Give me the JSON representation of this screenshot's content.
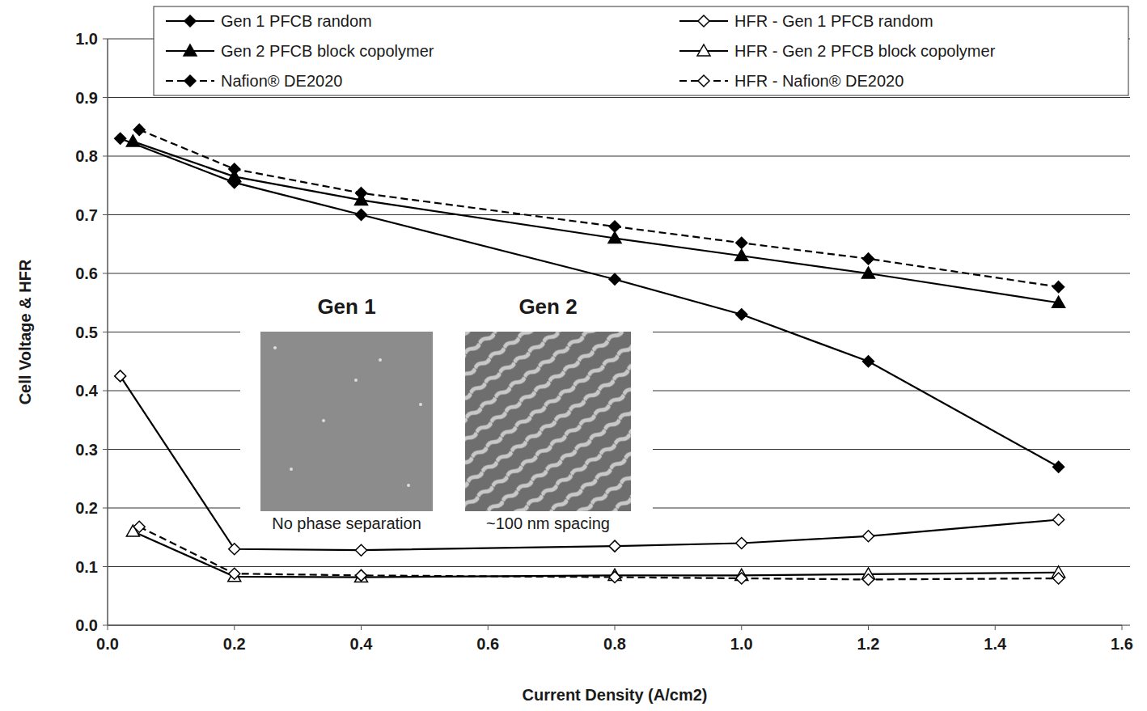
{
  "chart_data": {
    "type": "line",
    "x_label": "Current Density (A/cm2)",
    "y_label": "Cell Voltage & HFR",
    "xlim": [
      0,
      1.6
    ],
    "ylim": [
      0,
      1.0
    ],
    "xticks": [
      {
        "value": 0,
        "label": "0.0"
      },
      0.2,
      0.4,
      0.6,
      0.8,
      {
        "value": 1,
        "label": "1.0"
      },
      1.2,
      1.4,
      1.6
    ],
    "yticks": [
      {
        "value": 0,
        "label": "0.0"
      },
      0.1,
      0.2,
      0.3,
      0.4,
      0.5,
      0.6,
      0.7,
      0.8,
      0.9,
      {
        "value": 1,
        "label": "1.0"
      }
    ],
    "grid": true,
    "legend": "top",
    "series": [
      {
        "name": "Gen 1 PFCB random",
        "color": "#000000",
        "marker": "diamond",
        "line_style": "solid",
        "x": [
          0.02,
          0.2,
          0.4,
          0.8,
          1.0,
          1.2,
          1.5
        ],
        "values": [
          0.83,
          0.755,
          0.7,
          0.59,
          0.53,
          0.45,
          0.27
        ]
      },
      {
        "name": "HFR - Gen 1 PFCB random",
        "color": "#000000",
        "marker": "open-diamond",
        "line_style": "solid",
        "x": [
          0.02,
          0.2,
          0.4,
          0.8,
          1.0,
          1.2,
          1.5
        ],
        "values": [
          0.425,
          0.13,
          0.128,
          0.135,
          0.14,
          0.152,
          0.18
        ]
      },
      {
        "name": "Gen 2 PFCB block copolymer",
        "color": "#000000",
        "marker": "triangle",
        "line_style": "solid",
        "x": [
          0.04,
          0.2,
          0.4,
          0.8,
          1.0,
          1.2,
          1.5
        ],
        "values": [
          0.825,
          0.765,
          0.725,
          0.66,
          0.63,
          0.6,
          0.55
        ]
      },
      {
        "name": "HFR - Gen 2 PFCB block copolymer",
        "color": "#000000",
        "marker": "open-triangle",
        "line_style": "solid",
        "x": [
          0.04,
          0.2,
          0.4,
          0.8,
          1.0,
          1.2,
          1.5
        ],
        "values": [
          0.16,
          0.083,
          0.082,
          0.085,
          0.085,
          0.087,
          0.09
        ]
      },
      {
        "name": "Nafion® DE2020",
        "color": "#000000",
        "marker": "diamond",
        "line_style": "dashed",
        "x": [
          0.05,
          0.2,
          0.4,
          0.8,
          1.0,
          1.2,
          1.5
        ],
        "values": [
          0.845,
          0.778,
          0.737,
          0.68,
          0.652,
          0.625,
          0.577
        ]
      },
      {
        "name": "HFR - Nafion® DE2020",
        "color": "#000000",
        "marker": "open-diamond",
        "line_style": "dashed",
        "x": [
          0.05,
          0.2,
          0.4,
          0.8,
          1.0,
          1.2,
          1.5
        ],
        "values": [
          0.168,
          0.088,
          0.085,
          0.082,
          0.08,
          0.078,
          0.08
        ]
      }
    ],
    "annotations": [
      {
        "title": "Gen 1",
        "caption": "No phase separation"
      },
      {
        "title": "Gen 2",
        "caption": "~100 nm spacing"
      }
    ]
  }
}
